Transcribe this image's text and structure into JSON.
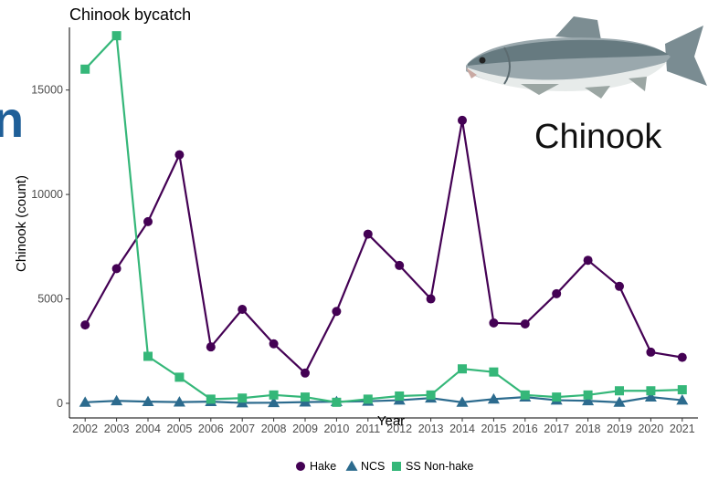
{
  "chart_data": {
    "type": "line",
    "title": "Chinook bycatch",
    "xlabel": "Year",
    "ylabel": "Chinook (count)",
    "x": [
      2002,
      2003,
      2004,
      2005,
      2006,
      2007,
      2008,
      2009,
      2010,
      2011,
      2012,
      2013,
      2014,
      2015,
      2016,
      2017,
      2018,
      2019,
      2020,
      2021
    ],
    "ylim": [
      -700,
      18000
    ],
    "yticks": [
      0,
      5000,
      10000,
      15000
    ],
    "grid": false,
    "legend_position": "bottom",
    "series": [
      {
        "name": "Hake",
        "marker": "circle",
        "color": "#440154",
        "values": [
          3750,
          6450,
          8700,
          11900,
          2700,
          4500,
          2850,
          1450,
          4400,
          8100,
          6600,
          5000,
          13550,
          3850,
          3800,
          5250,
          6850,
          5600,
          2450,
          2200
        ]
      },
      {
        "name": "NCS",
        "marker": "triangle",
        "color": "#2c6b8e",
        "values": [
          50,
          120,
          80,
          60,
          80,
          20,
          30,
          60,
          80,
          100,
          150,
          250,
          50,
          200,
          300,
          150,
          120,
          50,
          300,
          150
        ]
      },
      {
        "name": "SS Non-hake",
        "marker": "square",
        "color": "#35b779",
        "values": [
          16000,
          17600,
          2250,
          1250,
          200,
          250,
          400,
          300,
          50,
          200,
          350,
          400,
          1650,
          1500,
          400,
          300,
          400,
          600,
          600,
          650
        ]
      }
    ]
  },
  "overlay_text": "Chinook",
  "image_icon": "chinook-salmon-icon"
}
